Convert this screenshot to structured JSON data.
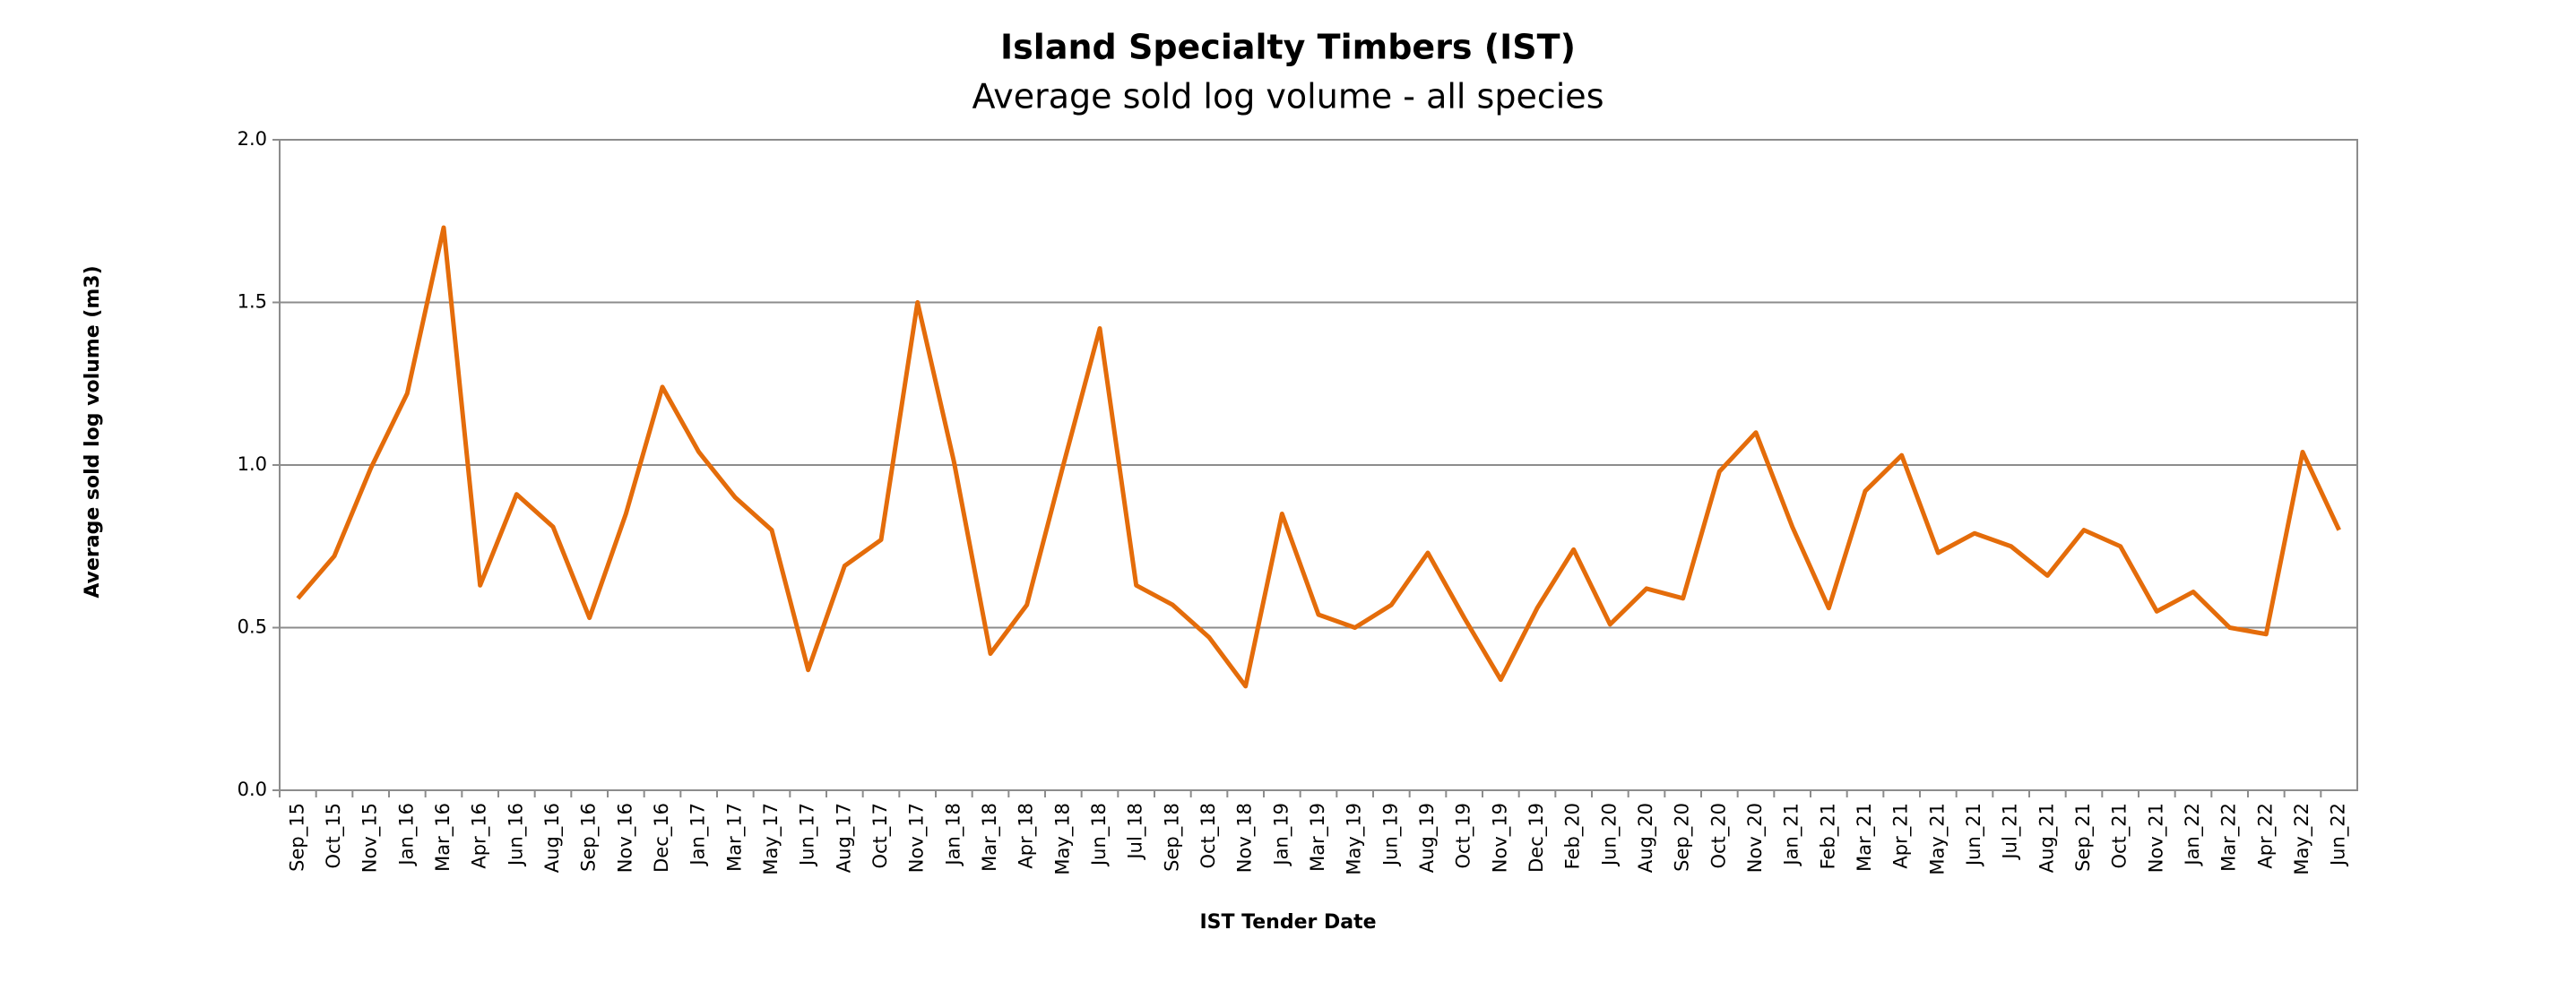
{
  "chart_data": {
    "type": "line",
    "title": "Island Specialty Timbers (IST)",
    "subtitle": "Average sold log volume - all species",
    "xlabel": "IST Tender Date",
    "ylabel": "Average sold log volume (m3)",
    "categories": [
      "Sep_15",
      "Oct_15",
      "Nov_15",
      "Jan_16",
      "Mar_16",
      "Apr_16",
      "Jun_16",
      "Aug_16",
      "Sep_16",
      "Nov_16",
      "Dec_16",
      "Jan_17",
      "Mar_17",
      "May_17",
      "Jun_17",
      "Aug_17",
      "Oct_17",
      "Nov_17",
      "Jan_18",
      "Mar_18",
      "Apr_18",
      "May_18",
      "Jun_18",
      "Jul_18",
      "Sep_18",
      "Oct_18",
      "Nov_18",
      "Jan_19",
      "Mar_19",
      "May_19",
      "Jun_19",
      "Aug_19",
      "Oct_19",
      "Nov_19",
      "Dec_19",
      "Feb_20",
      "Jun_20",
      "Aug_20",
      "Sep_20",
      "Oct_20",
      "Nov_20",
      "Jan_21",
      "Feb_21",
      "Mar_21",
      "Apr_21",
      "May_21",
      "Jun_21",
      "Jul_21",
      "Aug_21",
      "Sep_21",
      "Oct_21",
      "Nov_21",
      "Jan_22",
      "Mar_22",
      "Apr_22",
      "May_22",
      "Jun_22"
    ],
    "series": [
      {
        "name": "Average sold log volume",
        "color": "#e46c0a",
        "values": [
          0.59,
          0.72,
          0.99,
          1.22,
          1.73,
          0.63,
          0.91,
          0.81,
          0.53,
          0.85,
          1.24,
          1.04,
          0.9,
          0.8,
          0.37,
          0.69,
          0.77,
          1.5,
          1.01,
          0.42,
          0.57,
          1.0,
          1.42,
          0.63,
          0.57,
          0.47,
          0.32,
          0.85,
          0.54,
          0.5,
          0.57,
          0.73,
          0.53,
          0.34,
          0.56,
          0.74,
          0.51,
          0.62,
          0.59,
          0.98,
          1.1,
          0.81,
          0.56,
          0.92,
          1.03,
          0.73,
          0.79,
          0.75,
          0.66,
          0.8,
          0.75,
          0.55,
          0.61,
          0.5,
          0.48,
          1.04,
          0.8
        ]
      }
    ],
    "ylim": [
      0,
      2
    ],
    "yticks": [
      {
        "value": 0,
        "label": "0.0"
      },
      {
        "value": 0.5,
        "label": "0.5"
      },
      {
        "value": 1,
        "label": "1.0"
      },
      {
        "value": 1.5,
        "label": "1.5"
      },
      {
        "value": 2,
        "label": "2.0"
      }
    ],
    "grid": true
  }
}
